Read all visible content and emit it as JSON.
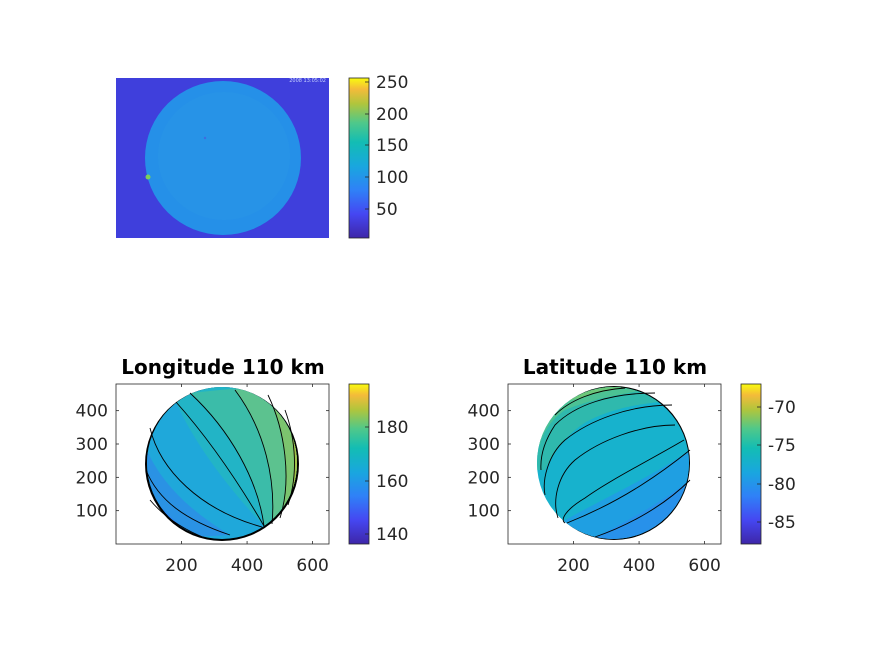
{
  "chart_data": [
    {
      "type": "heatmap",
      "panel": "image",
      "title": "",
      "xlabel": "",
      "ylabel": "",
      "overlay_text": "2008 13:05:02",
      "axis_ticks_visible": false,
      "colorbar": {
        "range": [
          0,
          255
        ],
        "ticks": [
          50,
          100,
          150,
          200,
          250
        ]
      },
      "colormap": "parula"
    },
    {
      "type": "heatmap",
      "panel": "longitude",
      "title": "Longitude 110 km",
      "xlabel": "",
      "ylabel": "",
      "xlim": [
        0,
        650
      ],
      "ylim": [
        0,
        480
      ],
      "xticks": [
        200,
        400,
        600
      ],
      "yticks": [
        100,
        200,
        300,
        400
      ],
      "colorbar": {
        "range": [
          135,
          196
        ],
        "ticks": [
          140,
          160,
          180
        ]
      },
      "contours": true,
      "colormap": "parula"
    },
    {
      "type": "heatmap",
      "panel": "latitude",
      "title": "Latitude 110 km",
      "xlabel": "",
      "ylabel": "",
      "xlim": [
        0,
        650
      ],
      "ylim": [
        0,
        480
      ],
      "xticks": [
        200,
        400,
        600
      ],
      "yticks": [
        100,
        200,
        300,
        400
      ],
      "colorbar": {
        "range": [
          -88,
          -67
        ],
        "ticks": [
          -85,
          -80,
          -75,
          -70
        ]
      },
      "contours": true,
      "colormap": "parula"
    }
  ],
  "colors": {
    "parula_bottom": "#3e26a8",
    "parula_low": "#2f5ef7",
    "parula_mid": "#13bdb3",
    "parula_high": "#97ca3b",
    "parula_top": "#f9fb0e",
    "axis": "#262626"
  }
}
